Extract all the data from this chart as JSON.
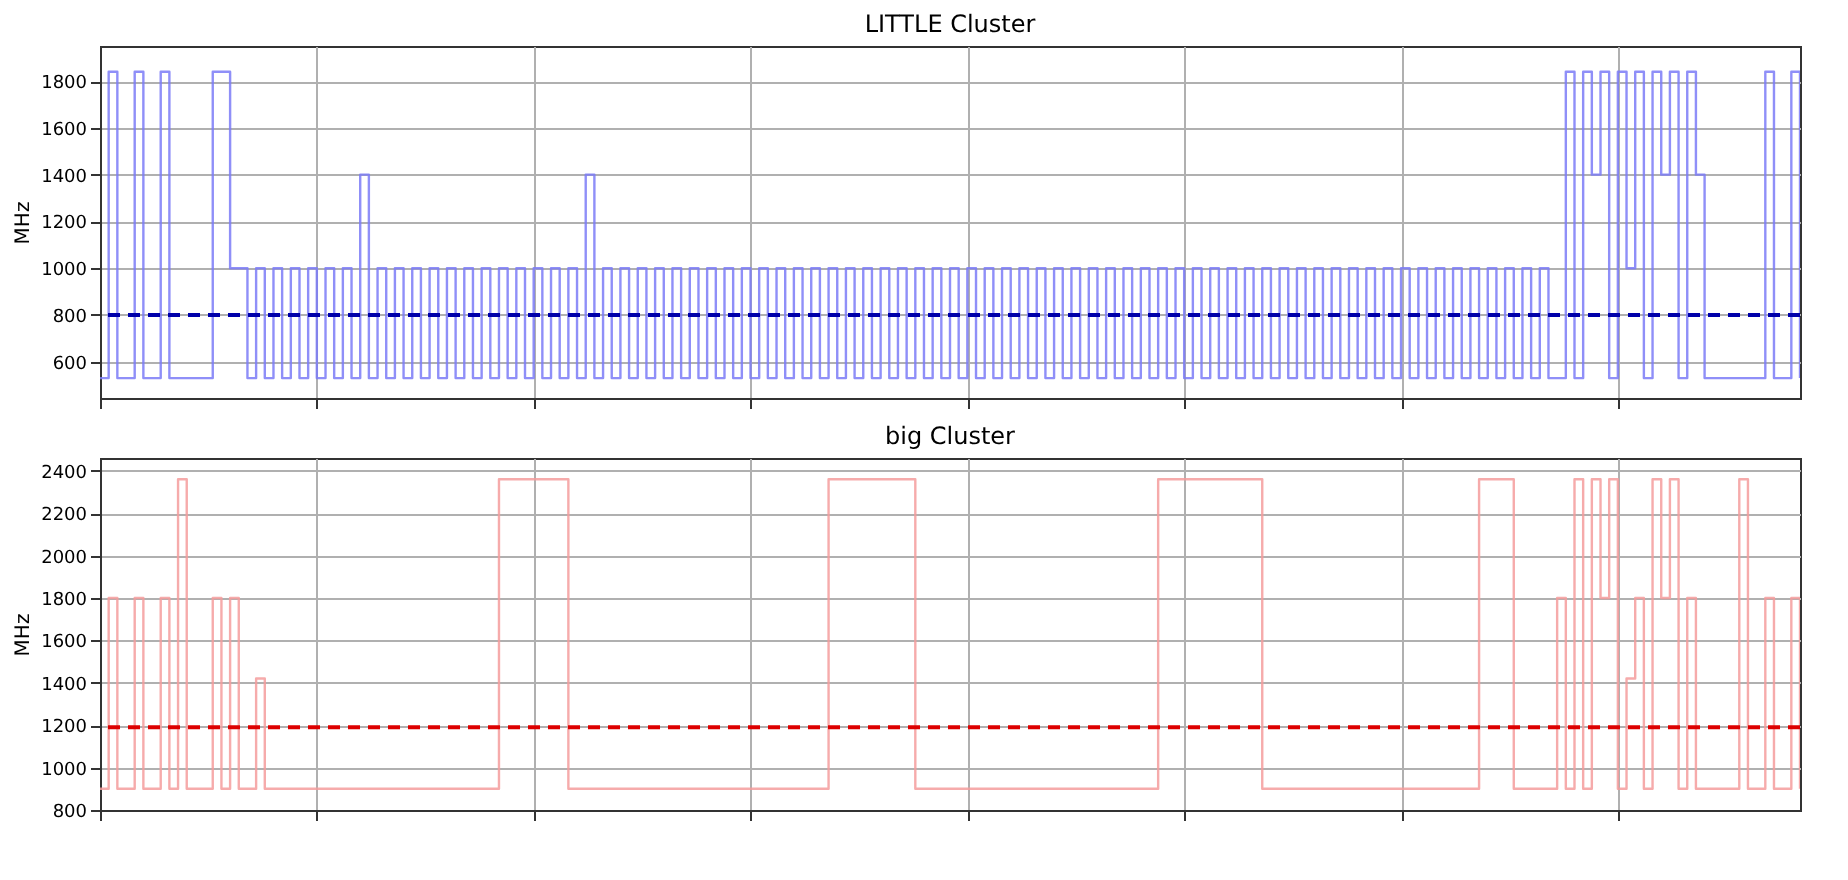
{
  "chart_data": [
    {
      "type": "step",
      "title": "LITTLE Cluster",
      "ylabel": "MHz",
      "categories": [
        null,
        null,
        null,
        null,
        null,
        null,
        null,
        null,
        null,
        null,
        null,
        null,
        null,
        null,
        null,
        null,
        null,
        null,
        null,
        null,
        null,
        null,
        null,
        null,
        null,
        null,
        null,
        null,
        null,
        null,
        null,
        null,
        null,
        null,
        null,
        null,
        null,
        null,
        null,
        null,
        null,
        null,
        null,
        null,
        null,
        null,
        null,
        null,
        null,
        null,
        null,
        null,
        null,
        null,
        null,
        null,
        null,
        null,
        null,
        null,
        null,
        null,
        null,
        null,
        null,
        null,
        null,
        null,
        null,
        null,
        null,
        null,
        null,
        null,
        null,
        null,
        null,
        null,
        null,
        null,
        null,
        null,
        null,
        null,
        null,
        null,
        null,
        null,
        null,
        null,
        null,
        null,
        null,
        null,
        null,
        null,
        null,
        null,
        null,
        null,
        null,
        null,
        null,
        null,
        null,
        null,
        null,
        null,
        null,
        null,
        null,
        null,
        null,
        null,
        null,
        null,
        null,
        null,
        null,
        null,
        null,
        null,
        null,
        null,
        null,
        null,
        null,
        null,
        null,
        null,
        null,
        null,
        null,
        null,
        null,
        null,
        null,
        null,
        null,
        null,
        null,
        null,
        null,
        null,
        null,
        null,
        null,
        null,
        null,
        null,
        null,
        null,
        null,
        null,
        null,
        null,
        null,
        null,
        null,
        null,
        null,
        null,
        null,
        null,
        null,
        null,
        null,
        null,
        null,
        null,
        null,
        null,
        null,
        null,
        null,
        null,
        null,
        null,
        null,
        null,
        null,
        null,
        null,
        null,
        null,
        null,
        null,
        null,
        null,
        null,
        null,
        null,
        null,
        null,
        null,
        null,
        null
      ],
      "series": [
        {
          "color": "#7b7bf7",
          "values": [
            530,
            1840,
            530,
            530,
            1840,
            530,
            530,
            1840,
            530,
            530,
            530,
            530,
            530,
            1840,
            1840,
            1000,
            1000,
            530,
            1000,
            530,
            1000,
            530,
            1000,
            530,
            1000,
            530,
            1000,
            530,
            1000,
            530,
            1400,
            530,
            1000,
            530,
            1000,
            530,
            1000,
            530,
            1000,
            530,
            1000,
            530,
            1000,
            530,
            1000,
            530,
            1000,
            530,
            1000,
            530,
            1000,
            530,
            1000,
            530,
            1000,
            530,
            1400,
            530,
            1000,
            530,
            1000,
            530,
            1000,
            530,
            1000,
            530,
            1000,
            530,
            1000,
            530,
            1000,
            530,
            1000,
            530,
            1000,
            530,
            1000,
            530,
            1000,
            530,
            1000,
            530,
            1000,
            530,
            1000,
            530,
            1000,
            530,
            1000,
            530,
            1000,
            530,
            1000,
            530,
            1000,
            530,
            1000,
            530,
            1000,
            530,
            1000,
            530,
            1000,
            530,
            1000,
            530,
            1000,
            530,
            1000,
            530,
            1000,
            530,
            1000,
            530,
            1000,
            530,
            1000,
            530,
            1000,
            530,
            1000,
            530,
            1000,
            530,
            1000,
            530,
            1000,
            530,
            1000,
            530,
            1000,
            530,
            1000,
            530,
            1000,
            530,
            1000,
            530,
            1000,
            530,
            1000,
            530,
            1000,
            530,
            1000,
            530,
            1000,
            530,
            1000,
            530,
            1000,
            530,
            1000,
            530,
            1000,
            530,
            1000,
            530,
            1000,
            530,
            1000,
            530,
            1000,
            530,
            1000,
            530,
            1000,
            530,
            530,
            1840,
            530,
            1840,
            1400,
            1840,
            530,
            1840,
            1000,
            1840,
            530,
            1840,
            1400,
            1840,
            530,
            1840,
            1400,
            530,
            530,
            530,
            530,
            530,
            530,
            530,
            1840,
            530,
            530,
            1840,
            530
          ]
        }
      ],
      "ylim": [
        445,
        1950
      ],
      "yticks": [
        600,
        800,
        1000,
        1200,
        1400,
        1600,
        1800
      ],
      "grid": true,
      "tick_labels": "y",
      "ref_lines": [
        {
          "axis": "y",
          "value": 800,
          "color": "#0000aa",
          "line_style": "dashed"
        }
      ]
    },
    {
      "type": "step",
      "title": "big Cluster",
      "ylabel": "MHz",
      "categories": [
        null,
        null,
        null,
        null,
        null,
        null,
        null,
        null,
        null,
        null,
        null,
        null,
        null,
        null,
        null,
        null,
        null,
        null,
        null,
        null,
        null,
        null,
        null,
        null,
        null,
        null,
        null,
        null,
        null,
        null,
        null,
        null,
        null,
        null,
        null,
        null,
        null,
        null,
        null,
        null,
        null,
        null,
        null,
        null,
        null,
        null,
        null,
        null,
        null,
        null,
        null,
        null,
        null,
        null,
        null,
        null,
        null,
        null,
        null,
        null,
        null,
        null,
        null,
        null,
        null,
        null,
        null,
        null,
        null,
        null,
        null,
        null,
        null,
        null,
        null,
        null,
        null,
        null,
        null,
        null,
        null,
        null,
        null,
        null,
        null,
        null,
        null,
        null,
        null,
        null,
        null,
        null,
        null,
        null,
        null,
        null,
        null,
        null,
        null,
        null,
        null,
        null,
        null,
        null,
        null,
        null,
        null,
        null,
        null,
        null,
        null,
        null,
        null,
        null,
        null,
        null,
        null,
        null,
        null,
        null,
        null,
        null,
        null,
        null,
        null,
        null,
        null,
        null,
        null,
        null,
        null,
        null,
        null,
        null,
        null,
        null,
        null,
        null,
        null,
        null,
        null,
        null,
        null,
        null,
        null,
        null,
        null,
        null,
        null,
        null,
        null,
        null,
        null,
        null,
        null,
        null,
        null,
        null,
        null,
        null,
        null,
        null,
        null,
        null,
        null,
        null,
        null,
        null,
        null,
        null,
        null,
        null,
        null,
        null,
        null,
        null,
        null,
        null,
        null,
        null,
        null,
        null,
        null,
        null,
        null,
        null,
        null,
        null,
        null,
        null,
        null,
        null,
        null,
        null,
        null,
        null,
        null
      ],
      "series": [
        {
          "color": "#f59c9c",
          "values": [
            900,
            1800,
            900,
            900,
            1800,
            900,
            900,
            1800,
            900,
            2360,
            900,
            900,
            900,
            1800,
            900,
            1800,
            900,
            900,
            1420,
            900,
            900,
            900,
            900,
            900,
            900,
            900,
            900,
            900,
            900,
            900,
            900,
            900,
            900,
            900,
            900,
            900,
            900,
            900,
            900,
            900,
            900,
            900,
            900,
            900,
            900,
            900,
            2360,
            2360,
            2360,
            2360,
            2360,
            2360,
            2360,
            2360,
            900,
            900,
            900,
            900,
            900,
            900,
            900,
            900,
            900,
            900,
            900,
            900,
            900,
            900,
            900,
            900,
            900,
            900,
            900,
            900,
            900,
            900,
            900,
            900,
            900,
            900,
            900,
            900,
            900,
            900,
            2360,
            2360,
            2360,
            2360,
            2360,
            2360,
            2360,
            2360,
            2360,
            2360,
            900,
            900,
            900,
            900,
            900,
            900,
            900,
            900,
            900,
            900,
            900,
            900,
            900,
            900,
            900,
            900,
            900,
            900,
            900,
            900,
            900,
            900,
            900,
            900,
            900,
            900,
            900,
            900,
            2360,
            2360,
            2360,
            2360,
            2360,
            2360,
            2360,
            2360,
            2360,
            2360,
            2360,
            2360,
            900,
            900,
            900,
            900,
            900,
            900,
            900,
            900,
            900,
            900,
            900,
            900,
            900,
            900,
            900,
            900,
            900,
            900,
            900,
            900,
            900,
            900,
            900,
            900,
            900,
            2360,
            2360,
            2360,
            2360,
            900,
            900,
            900,
            900,
            900,
            1800,
            900,
            2360,
            900,
            2360,
            1800,
            2360,
            900,
            1420,
            1800,
            900,
            2360,
            1800,
            2360,
            900,
            1800,
            900,
            900,
            900,
            900,
            900,
            2360,
            900,
            900,
            1800,
            900,
            900,
            1800,
            900
          ]
        }
      ],
      "ylim": [
        800,
        2460
      ],
      "yticks": [
        800,
        1000,
        1200,
        1400,
        1600,
        1800,
        2000,
        2200,
        2400
      ],
      "grid": true,
      "tick_labels": "y",
      "ref_lines": [
        {
          "axis": "y",
          "value": 1190,
          "color": "#dd0000",
          "line_style": "dashed"
        }
      ]
    }
  ]
}
